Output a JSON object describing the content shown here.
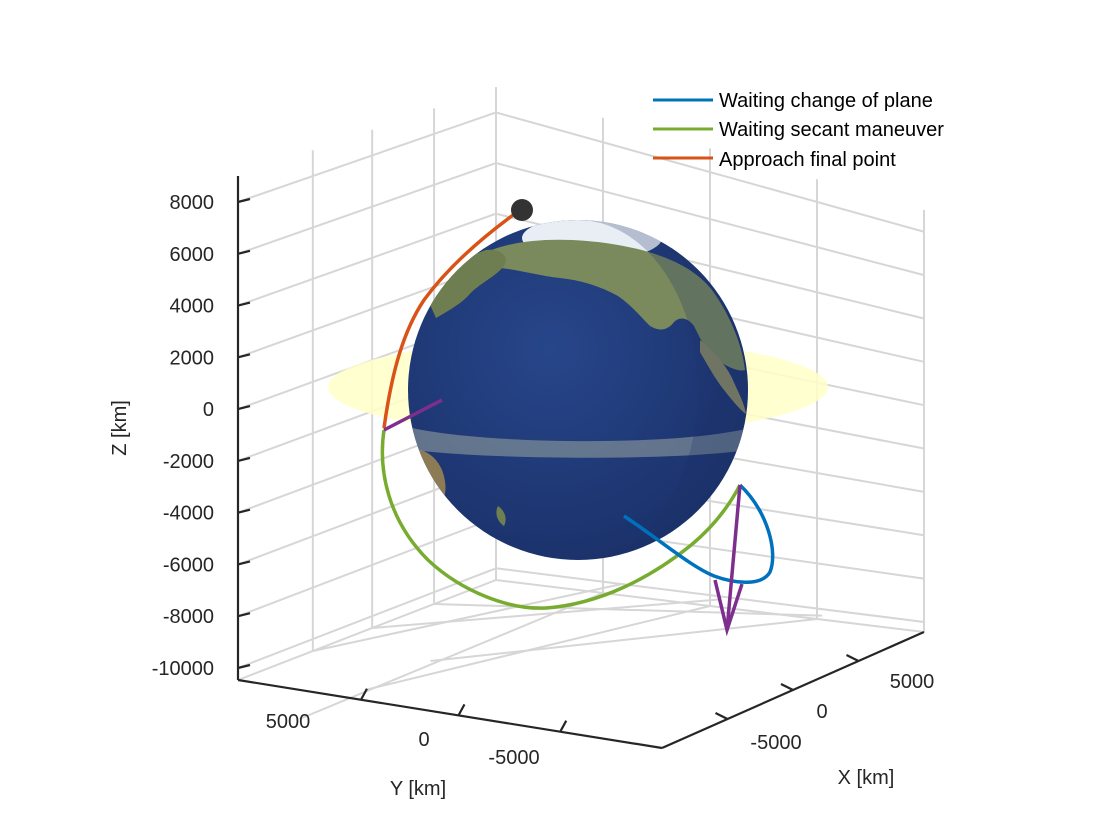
{
  "chart_data": {
    "type": "line",
    "view": "3d",
    "xlabel": "X [km]",
    "ylabel": "Y [km]",
    "zlabel": "Z [km]",
    "x_ticks": [
      "-5000",
      "0",
      "5000"
    ],
    "y_ticks": [
      "5000",
      "0",
      "-5000"
    ],
    "z_ticks": [
      "8000",
      "6000",
      "4000",
      "2000",
      "0",
      "-2000",
      "-4000",
      "-6000",
      "-8000",
      "-10000"
    ],
    "zlim": [
      -10000,
      8000
    ],
    "grid": true,
    "legend_position": "top-right",
    "series": [
      {
        "name": "Waiting change of plane",
        "color": "#0072BD"
      },
      {
        "name": "Waiting secant maneuver",
        "color": "#77AC30"
      },
      {
        "name": "Approach final point",
        "color": "#D95319"
      }
    ],
    "annotations": {
      "vector_color": "#7E2F8E",
      "target_marker_color": "#333333",
      "equatorial_plane_color": "#FFFFC8",
      "earth_ocean_color": "#1F3A78"
    }
  }
}
